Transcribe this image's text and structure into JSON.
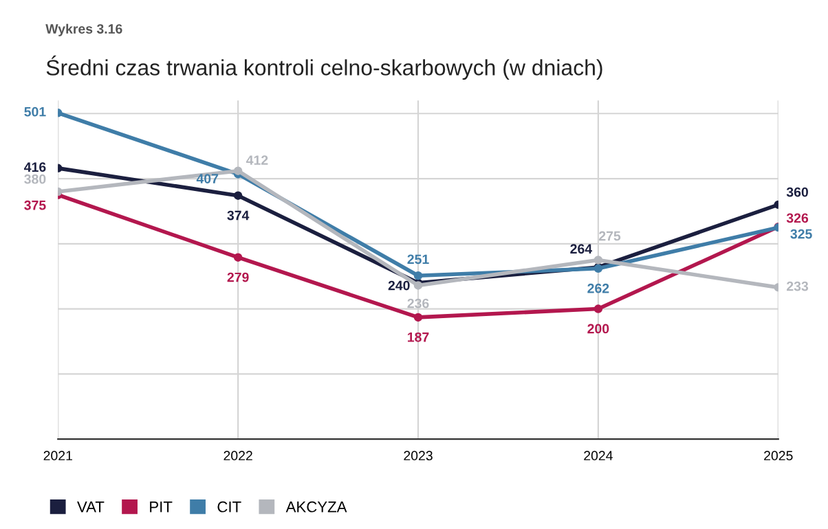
{
  "chart_data": {
    "type": "line",
    "subtitle": "Wykres 3.16",
    "title": "Średni czas trwania kontroli celno-skarbowych (w dniach)",
    "categories": [
      "2021",
      "2022",
      "2023",
      "2024",
      "2025"
    ],
    "series": [
      {
        "name": "VAT",
        "color": "#1b1f3f",
        "values": [
          416,
          374,
          240,
          264,
          360
        ]
      },
      {
        "name": "PIT",
        "color": "#b3174e",
        "values": [
          375,
          279,
          187,
          200,
          326
        ]
      },
      {
        "name": "CIT",
        "color": "#3f7da8",
        "values": [
          501,
          407,
          251,
          262,
          325
        ]
      },
      {
        "name": "AKCYZA",
        "color": "#b4b7bd",
        "values": [
          380,
          412,
          236,
          275,
          233
        ]
      }
    ],
    "ylim": [
      0,
      520
    ],
    "yticks": [
      {
        "value": 0,
        "label": null
      },
      {
        "value": 100,
        "label": null
      },
      {
        "value": 200,
        "label": null
      },
      {
        "value": 300,
        "label": null
      },
      {
        "value": 400,
        "label": null
      },
      {
        "value": 500,
        "label": null
      }
    ],
    "tick_labels": "x",
    "grid": true,
    "marker": "circle",
    "line_style": "solid",
    "data_labels": true,
    "legend": "bottom left"
  }
}
